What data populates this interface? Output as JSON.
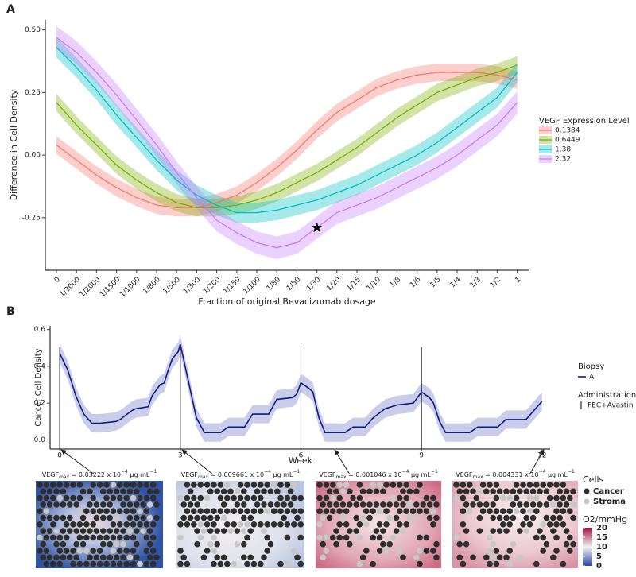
{
  "chart_data": [
    {
      "type": "line",
      "label": "A",
      "y_label": "Difference in Cell Density",
      "x_label": "Fraction of original Bevacizumab dosage",
      "legend_title": "VEGF Expression Level",
      "categories": [
        "0",
        "1/3000",
        "1/2000",
        "1/1500",
        "1/1000",
        "1/800",
        "1/500",
        "1/300",
        "1/200",
        "1/150",
        "1/100",
        "1/80",
        "1/50",
        "1/30",
        "1/20",
        "1/15",
        "1/10",
        "1/8",
        "1/6",
        "1/5",
        "1/4",
        "1/3",
        "1/2",
        "1"
      ],
      "ylim": [
        -0.46,
        0.54
      ],
      "yticks": [
        {
          "value": -0.25,
          "label": "-0.25"
        },
        {
          "value": 0,
          "label": "0.00"
        },
        {
          "value": 0.25,
          "label": "0.25"
        },
        {
          "value": 0.5,
          "label": "0.50"
        }
      ],
      "highlight": "1/30",
      "series": [
        {
          "name": "0.1384",
          "color": "#f8766d",
          "band": 0.035,
          "values": [
            0.04,
            -0.02,
            -0.08,
            -0.13,
            -0.17,
            -0.2,
            -0.21,
            -0.21,
            -0.19,
            -0.16,
            -0.11,
            -0.05,
            0.02,
            0.1,
            0.17,
            0.22,
            0.27,
            0.3,
            0.32,
            0.33,
            0.33,
            0.33,
            0.32,
            0.3
          ]
        },
        {
          "name": "0.6449",
          "color": "#7cae00",
          "band": 0.035,
          "values": [
            0.21,
            0.12,
            0.04,
            -0.04,
            -0.1,
            -0.15,
            -0.19,
            -0.21,
            -0.21,
            -0.2,
            -0.18,
            -0.15,
            -0.11,
            -0.07,
            -0.02,
            0.03,
            0.09,
            0.15,
            0.2,
            0.25,
            0.28,
            0.31,
            0.33,
            0.36
          ]
        },
        {
          "name": "1.38",
          "color": "#00bfc4",
          "band": 0.04,
          "values": [
            0.43,
            0.35,
            0.26,
            0.16,
            0.07,
            -0.02,
            -0.1,
            -0.16,
            -0.2,
            -0.23,
            -0.23,
            -0.22,
            -0.2,
            -0.18,
            -0.15,
            -0.12,
            -0.08,
            -0.04,
            0.0,
            0.05,
            0.11,
            0.17,
            0.23,
            0.33
          ]
        },
        {
          "name": "2.32",
          "color": "#c77cff",
          "band": 0.045,
          "values": [
            0.47,
            0.41,
            0.33,
            0.24,
            0.14,
            0.04,
            -0.07,
            -0.17,
            -0.26,
            -0.31,
            -0.35,
            -0.37,
            -0.35,
            -0.29,
            -0.23,
            -0.2,
            -0.17,
            -0.13,
            -0.09,
            -0.05,
            0.0,
            0.06,
            0.12,
            0.21
          ]
        }
      ]
    },
    {
      "type": "line",
      "label": "B",
      "y_label": "Cancer Cell Density",
      "x_label": "Week",
      "legend_title": "Biopsy",
      "xlim": [
        -0.24,
        12.4
      ],
      "xticks": [
        0,
        3,
        6,
        9,
        12
      ],
      "ylim": [
        -0.05,
        0.62
      ],
      "yticks": [
        {
          "value": 0,
          "label": "0.0"
        },
        {
          "value": 0.2,
          "label": "0.2"
        },
        {
          "value": 0.4,
          "label": "0.4"
        },
        {
          "value": 0.6,
          "label": "0.6"
        }
      ],
      "administration": {
        "title": "Administration",
        "name": "FEC+Avastin",
        "x": [
          0,
          3,
          6,
          9
        ]
      },
      "series": [
        {
          "name": "A",
          "color": "#101c80",
          "band": 0.05,
          "x": [
            0,
            0.2,
            0.4,
            0.6,
            0.8,
            1.0,
            1.4,
            1.5,
            1.8,
            1.9,
            2.2,
            2.3,
            2.5,
            2.6,
            2.7,
            2.8,
            2.95,
            3.0,
            3.2,
            3.4,
            3.6,
            4.0,
            4.2,
            4.6,
            4.8,
            5.2,
            5.4,
            5.8,
            5.9,
            6.0,
            6.2,
            6.3,
            6.45,
            6.6,
            7.1,
            7.3,
            7.6,
            7.8,
            8.1,
            8.4,
            8.8,
            9.0,
            9.2,
            9.3,
            9.45,
            9.6,
            10.2,
            10.4,
            10.9,
            11.1,
            11.6,
            11.8,
            12.0
          ],
          "values": [
            0.47,
            0.38,
            0.24,
            0.14,
            0.09,
            0.09,
            0.1,
            0.11,
            0.16,
            0.17,
            0.18,
            0.24,
            0.3,
            0.31,
            0.38,
            0.44,
            0.48,
            0.52,
            0.32,
            0.12,
            0.04,
            0.04,
            0.07,
            0.07,
            0.14,
            0.14,
            0.22,
            0.23,
            0.25,
            0.31,
            0.28,
            0.26,
            0.12,
            0.04,
            0.04,
            0.07,
            0.07,
            0.12,
            0.17,
            0.19,
            0.2,
            0.26,
            0.23,
            0.2,
            0.1,
            0.04,
            0.04,
            0.07,
            0.07,
            0.11,
            0.11,
            0.16,
            0.21
          ]
        }
      ]
    }
  ],
  "maps": {
    "panels": [
      {
        "name": "VEGF",
        "sub": "max",
        "text": " = 0.03222 x 10",
        "exp": "−4",
        "unit": " μg mL",
        "unit_exp": "−1"
      },
      {
        "name": "VEGF",
        "sub": "max",
        "text": " = 0.009661 x 10",
        "exp": "−4",
        "unit": " μg mL",
        "unit_exp": "−1"
      },
      {
        "name": "VEGF",
        "sub": "max",
        "text": " = 0.001046 x 10",
        "exp": "−4",
        "unit": " μg mL",
        "unit_exp": "−1"
      },
      {
        "name": "VEGF",
        "sub": "max",
        "text": " = 0.004331 x 10",
        "exp": "−4",
        "unit": " μg mL",
        "unit_exp": "−1"
      }
    ],
    "cells_legend": {
      "title": "Cells",
      "entries": [
        "Cancer",
        "Stroma"
      ]
    },
    "colorbar": {
      "title": "O2/mmHg",
      "lim": [
        0,
        20
      ],
      "ticks": [
        0,
        5,
        10,
        15,
        20
      ]
    }
  }
}
